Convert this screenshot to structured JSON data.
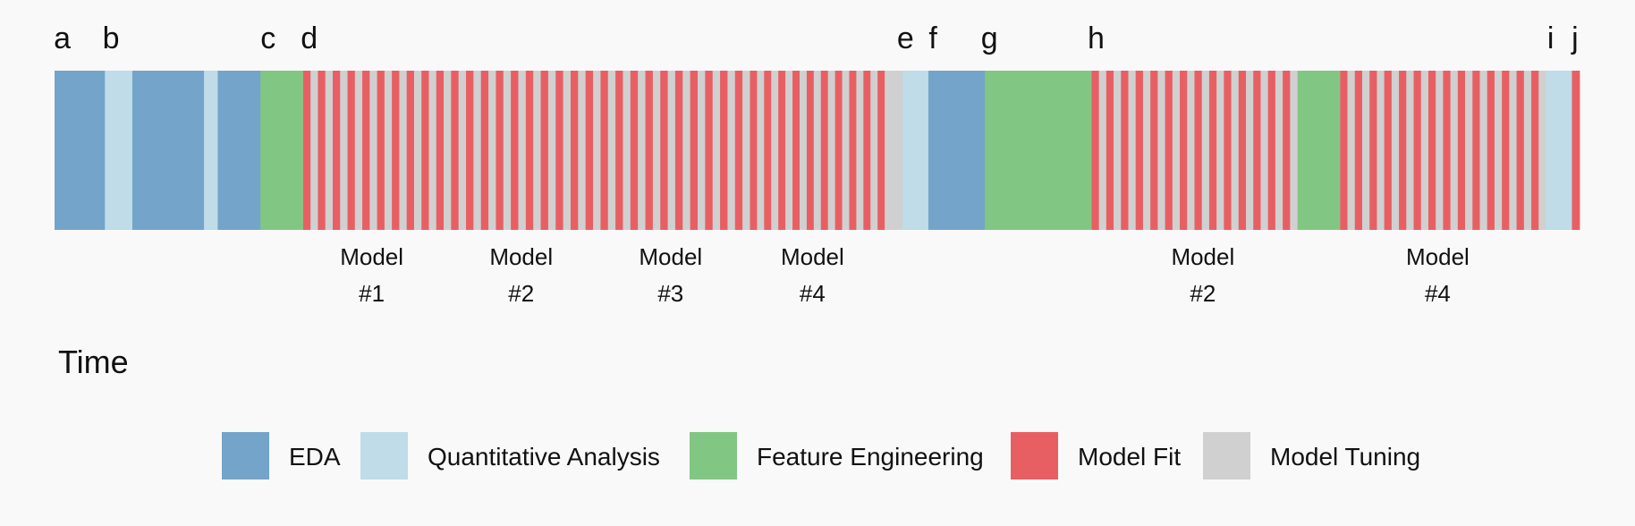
{
  "axis_title": "Time",
  "colors": {
    "eda": "#74a4c9",
    "qa": "#bfdce8",
    "fe": "#82c684",
    "fit": "#e85f63",
    "tune": "#d0d0d0"
  },
  "legend": [
    {
      "key": "eda",
      "label": "EDA"
    },
    {
      "key": "qa",
      "label": "Quantitative Analysis"
    },
    {
      "key": "fe",
      "label": "Feature Engineering"
    },
    {
      "key": "fit",
      "label": "Model Fit"
    },
    {
      "key": "tune",
      "label": "Model Tuning"
    }
  ],
  "chart_data": {
    "type": "timeline",
    "time_range": [
      0,
      100
    ],
    "segments": [
      {
        "phase": "eda",
        "start": 0.0,
        "end": 3.3
      },
      {
        "phase": "qa",
        "start": 3.3,
        "end": 5.1
      },
      {
        "phase": "eda",
        "start": 5.1,
        "end": 9.8
      },
      {
        "phase": "qa",
        "start": 9.8,
        "end": 10.7
      },
      {
        "phase": "eda",
        "start": 10.7,
        "end": 13.5
      },
      {
        "phase": "fe",
        "start": 13.5,
        "end": 16.3
      },
      {
        "phase": "fit_tune",
        "start": 16.3,
        "end": 26.0,
        "fits": 10
      },
      {
        "phase": "fit_tune",
        "start": 26.0,
        "end": 35.8,
        "fits": 10
      },
      {
        "phase": "fit_tune",
        "start": 35.8,
        "end": 45.6,
        "fits": 10
      },
      {
        "phase": "fit_tune",
        "start": 45.6,
        "end": 54.9,
        "fits": 10
      },
      {
        "phase": "tune",
        "start": 54.9,
        "end": 55.6
      },
      {
        "phase": "qa",
        "start": 55.6,
        "end": 57.3
      },
      {
        "phase": "eda",
        "start": 57.3,
        "end": 61.0
      },
      {
        "phase": "fe",
        "start": 61.0,
        "end": 68.0
      },
      {
        "phase": "fit_tune",
        "start": 68.0,
        "end": 81.5,
        "fits": 14
      },
      {
        "phase": "fe",
        "start": 81.5,
        "end": 84.3
      },
      {
        "phase": "fit_tune",
        "start": 84.3,
        "end": 97.8,
        "fits": 14
      },
      {
        "phase": "qa",
        "start": 97.8,
        "end": 99.5
      },
      {
        "phase": "fit",
        "start": 99.5,
        "end": 100.0
      }
    ],
    "events": [
      {
        "label": "a",
        "t": 0.5
      },
      {
        "label": "b",
        "t": 3.7
      },
      {
        "label": "c",
        "t": 14.0
      },
      {
        "label": "d",
        "t": 16.7
      },
      {
        "label": "e",
        "t": 55.8
      },
      {
        "label": "f",
        "t": 57.6
      },
      {
        "label": "g",
        "t": 61.3
      },
      {
        "label": "h",
        "t": 68.3
      },
      {
        "label": "i",
        "t": 98.1
      },
      {
        "label": "j",
        "t": 99.7
      }
    ],
    "model_annotations": [
      {
        "line1": "Model",
        "line2": "#1",
        "t": 20.8
      },
      {
        "line1": "Model",
        "line2": "#2",
        "t": 30.6
      },
      {
        "line1": "Model",
        "line2": "#3",
        "t": 40.4
      },
      {
        "line1": "Model",
        "line2": "#4",
        "t": 49.7
      },
      {
        "line1": "Model",
        "line2": "#2",
        "t": 75.3
      },
      {
        "line1": "Model",
        "line2": "#4",
        "t": 90.7
      }
    ]
  }
}
